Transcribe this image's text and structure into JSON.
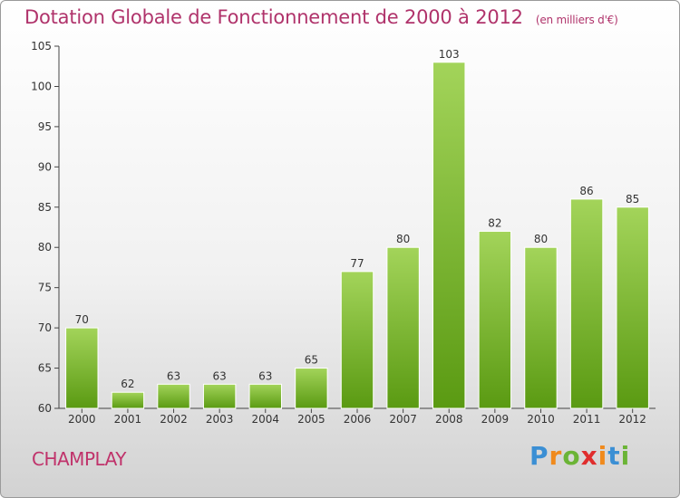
{
  "title": "Dotation Globale de Fonctionnement de 2000 à 2012",
  "unit": "(en milliers d'€)",
  "commune": "CHAMPLAY",
  "brand": {
    "letters": [
      "P",
      "r",
      "o",
      "x",
      "i",
      "t",
      "i"
    ],
    "colors": [
      "#3b8fd4",
      "#f08a1c",
      "#6bb436",
      "#e02d2d",
      "#f08a1c",
      "#3b8fd4",
      "#6bb436"
    ]
  },
  "colors": {
    "bar_light": "#a3d45a",
    "bar_dark": "#5a9a12",
    "title": "#b0336b"
  },
  "chart_data": {
    "type": "bar",
    "categories": [
      "2000",
      "2001",
      "2002",
      "2003",
      "2004",
      "2005",
      "2006",
      "2007",
      "2008",
      "2009",
      "2010",
      "2011",
      "2012"
    ],
    "values": [
      70,
      62,
      63,
      63,
      63,
      65,
      77,
      80,
      103,
      82,
      80,
      86,
      85
    ],
    "ylim": [
      60,
      105
    ],
    "yticks": [
      60,
      65,
      70,
      75,
      80,
      85,
      90,
      95,
      100,
      105
    ],
    "grid": false,
    "legend": "none"
  }
}
